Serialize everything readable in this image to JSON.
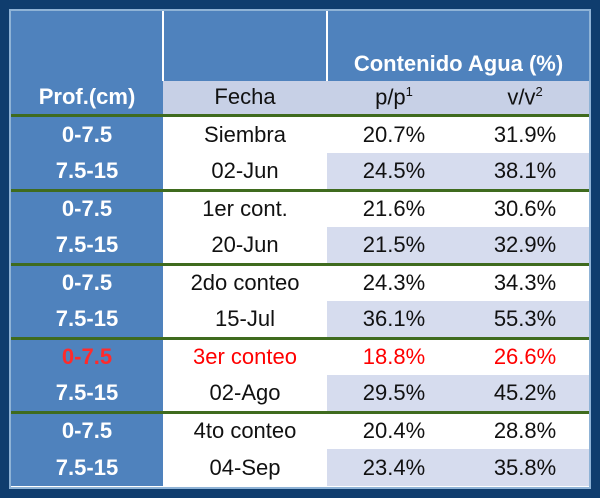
{
  "header": {
    "title": "Contenido Agua (%)",
    "columns": [
      "Prof.(cm)",
      "Fecha",
      "p/p",
      "v/v"
    ],
    "pp_superscript": "1",
    "vv_superscript": "2"
  },
  "rows": [
    {
      "prof": "0-7.5",
      "fecha": "Siembra",
      "pp": "20.7%",
      "vv": "31.9%"
    },
    {
      "prof": "7.5-15",
      "fecha": "02-Jun",
      "pp": "24.5%",
      "vv": "38.1%"
    },
    {
      "prof": "0-7.5",
      "fecha": "1er cont.",
      "pp": "21.6%",
      "vv": "30.6%"
    },
    {
      "prof": "7.5-15",
      "fecha": "20-Jun",
      "pp": "21.5%",
      "vv": "32.9%"
    },
    {
      "prof": "0-7.5",
      "fecha": "2do conteo",
      "pp": "24.3%",
      "vv": "34.3%"
    },
    {
      "prof": "7.5-15",
      "fecha": "15-Jul",
      "pp": "36.1%",
      "vv": "55.3%"
    },
    {
      "prof": "0-7.5",
      "fecha": "3er conteo",
      "pp": "18.8%",
      "vv": "26.6%"
    },
    {
      "prof": "7.5-15",
      "fecha": "02-Ago",
      "pp": "29.5%",
      "vv": "45.2%"
    },
    {
      "prof": "0-7.5",
      "fecha": "4to conteo",
      "pp": "20.4%",
      "vv": "28.8%"
    },
    {
      "prof": "7.5-15",
      "fecha": "04-Sep",
      "pp": "23.4%",
      "vv": "35.8%"
    }
  ],
  "colors": {
    "background": "#0f3d6e",
    "header_blue": "#4f82bd",
    "lavender": "#d6dcee",
    "highlight_red": "#ff0000",
    "separator_green": "#3f6b1e"
  }
}
